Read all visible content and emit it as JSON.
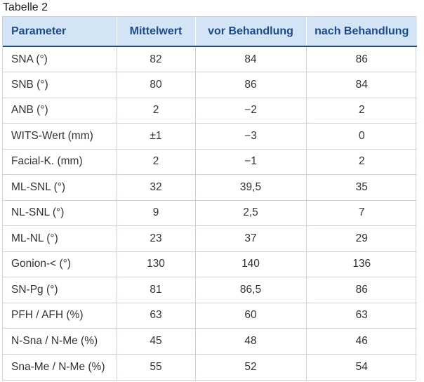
{
  "caption": "Tabelle 2",
  "table": {
    "headers": [
      "Parameter",
      "Mittelwert",
      "vor Behandlung",
      "nach Behandlung"
    ],
    "rows": [
      [
        "SNA (°)",
        "82",
        "84",
        "86"
      ],
      [
        "SNB (°)",
        "80",
        "86",
        "84"
      ],
      [
        "ANB (°)",
        "2",
        "−2",
        "2"
      ],
      [
        "WITS-Wert (mm)",
        "±1",
        "−3",
        "0"
      ],
      [
        "Facial-K. (mm)",
        "2",
        "−1",
        "2"
      ],
      [
        "ML-SNL (°)",
        "32",
        "39,5",
        "35"
      ],
      [
        "NL-SNL (°)",
        "9",
        "2,5",
        "7"
      ],
      [
        "ML-NL (°)",
        "23",
        "37",
        "29"
      ],
      [
        "Gonion-< (°)",
        "130",
        "140",
        "136"
      ],
      [
        "SN-Pg (°)",
        "81",
        "86,5",
        "86"
      ],
      [
        "PFH / AFH (%)",
        "63",
        "60",
        "63"
      ],
      [
        "N-Sna / N-Me (%)",
        "45",
        "48",
        "46"
      ],
      [
        "Sna-Me / N-Me (%)",
        "55",
        "52",
        "54"
      ]
    ]
  },
  "colors": {
    "header_bg": "#d3e4f4",
    "header_text": "#1c4a8a",
    "border": "#c9d3e0"
  }
}
